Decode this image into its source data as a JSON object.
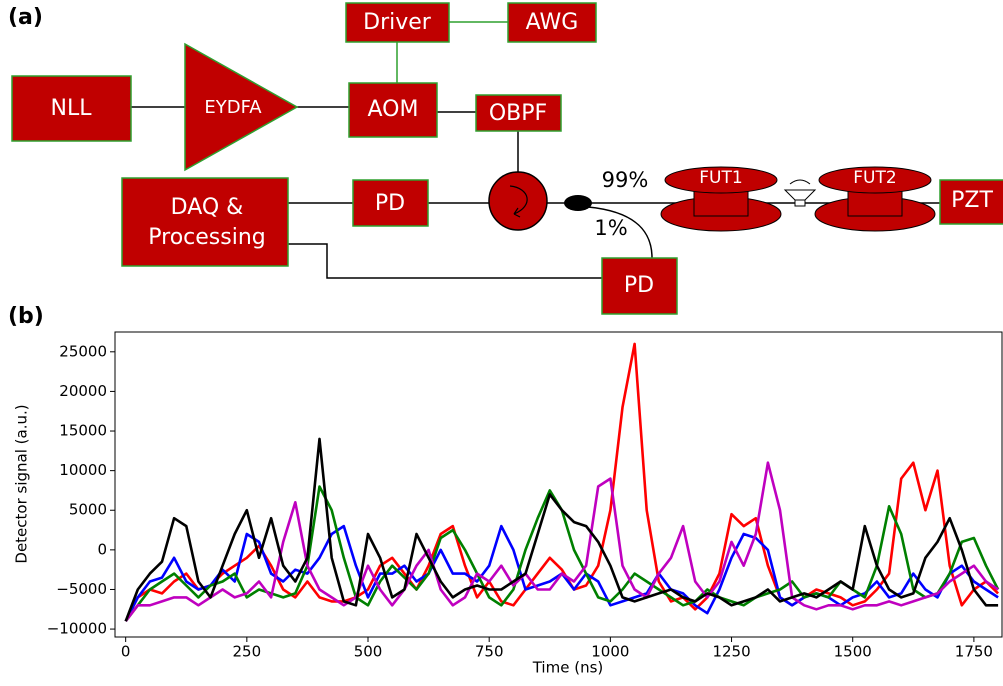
{
  "diagram": {
    "label": "(a)",
    "driver": "Driver",
    "awg": "AWG",
    "nll": "NLL",
    "amplifier": "EYDFA",
    "aom": "AOM",
    "filter": "OBPF",
    "daq": [
      "DAQ &",
      "Processing"
    ],
    "pd_upper": "PD",
    "pd_lower": "PD",
    "split_main": "99%",
    "split_tap": "1%",
    "fut1": "FUT1",
    "fut2": "FUT2",
    "pzt": "PZT"
  },
  "chart_data": {
    "type": "line",
    "label": "(b)",
    "x_label": "Time (ns)",
    "y_label": "Detector signal (a.u.)",
    "xlim": [
      -22,
      1808
    ],
    "ylim": [
      -11000,
      27500
    ],
    "xticks": [
      0,
      250,
      500,
      750,
      1000,
      1250,
      1500,
      1750
    ],
    "yticks": [
      {
        "value": -10000,
        "label": "−10000"
      },
      {
        "value": -5000,
        "label": "−5000"
      },
      0,
      5000,
      10000,
      15000,
      20000,
      25000
    ],
    "x": [
      0,
      25,
      50,
      75,
      100,
      125,
      150,
      175,
      200,
      225,
      250,
      275,
      300,
      325,
      350,
      375,
      400,
      425,
      450,
      475,
      500,
      525,
      550,
      575,
      600,
      625,
      650,
      675,
      700,
      725,
      750,
      775,
      800,
      825,
      850,
      875,
      900,
      925,
      950,
      975,
      1000,
      1025,
      1050,
      1075,
      1100,
      1125,
      1150,
      1175,
      1200,
      1225,
      1250,
      1275,
      1300,
      1325,
      1350,
      1375,
      1400,
      1425,
      1450,
      1475,
      1500,
      1525,
      1550,
      1575,
      1600,
      1625,
      1650,
      1675,
      1700,
      1725,
      1750,
      1775,
      1800
    ],
    "series": [
      {
        "color": "#ff0000",
        "values": [
          -9000,
          -6000,
          -5000,
          -5500,
          -4000,
          -3000,
          -5000,
          -4500,
          -3000,
          -2000,
          -1000,
          500,
          -2000,
          -5000,
          -6000,
          -4000,
          -6000,
          -6500,
          -6500,
          -6000,
          -5000,
          -2000,
          -1000,
          -3000,
          -5000,
          -2000,
          2000,
          3000,
          -2000,
          -6000,
          -4000,
          -6500,
          -7000,
          -5000,
          -3000,
          -1000,
          -2500,
          -5000,
          -4500,
          -2000,
          5000,
          18000,
          26000,
          5000,
          -4000,
          -6500,
          -6000,
          -7500,
          -6000,
          -3000,
          4500,
          3000,
          4000,
          -2000,
          -6000,
          -7000,
          -6000,
          -5000,
          -5500,
          -6000,
          -7000,
          -6500,
          -5000,
          -3000,
          9000,
          11000,
          5000,
          10000,
          -2000,
          -7000,
          -5000,
          -4000,
          -5500
        ]
      },
      {
        "color": "#0000ff",
        "values": [
          -9000,
          -6000,
          -4000,
          -3500,
          -1000,
          -4000,
          -5000,
          -4500,
          -2500,
          -4000,
          2000,
          1000,
          -3000,
          -4000,
          -2500,
          -3000,
          -1000,
          2000,
          3000,
          -2000,
          -6000,
          -3000,
          -3000,
          -2000,
          -4000,
          -3000,
          0,
          -3000,
          -3000,
          -4000,
          -2000,
          3000,
          0,
          -5000,
          -4500,
          -4000,
          -3000,
          -5000,
          -3000,
          -4000,
          -7000,
          -6500,
          -6000,
          -5500,
          -3000,
          -5000,
          -5500,
          -7000,
          -8000,
          -5000,
          -1000,
          2000,
          1500,
          0,
          -6000,
          -7000,
          -6000,
          -5500,
          -6000,
          -7000,
          -6000,
          -5500,
          -4000,
          -6000,
          -5500,
          -3000,
          -5000,
          -6000,
          -3000,
          -2000,
          -4000,
          -5000,
          -6000
        ]
      },
      {
        "color": "#008000",
        "values": [
          -9000,
          -7000,
          -5000,
          -4000,
          -3000,
          -4500,
          -6000,
          -4500,
          -4000,
          -3000,
          -6000,
          -5000,
          -5500,
          -6000,
          -5500,
          -2000,
          8000,
          5000,
          -1000,
          -6000,
          -7000,
          -4000,
          -2000,
          -3500,
          -5000,
          -3000,
          1500,
          2500,
          0,
          -3000,
          -6000,
          -7000,
          -5000,
          0,
          4000,
          7500,
          5000,
          0,
          -3000,
          -6000,
          -6500,
          -5000,
          -3000,
          -4000,
          -5000,
          -6000,
          -7000,
          -6500,
          -5000,
          -6000,
          -6500,
          -7000,
          -6000,
          -5500,
          -5000,
          -4000,
          -6000,
          -5500,
          -6000,
          -4000,
          -5000,
          -6000,
          -2000,
          5500,
          2000,
          -5000,
          -6000,
          -5500,
          -3000,
          1000,
          1500,
          -2000,
          -5000
        ]
      },
      {
        "color": "#bf00bf",
        "values": [
          -9000,
          -7000,
          -7000,
          -6500,
          -6000,
          -6000,
          -7000,
          -6000,
          -5000,
          -6000,
          -5500,
          -4000,
          -6000,
          1000,
          6000,
          -2000,
          -5000,
          -6000,
          -7000,
          -6000,
          -2000,
          -5000,
          -7000,
          -5000,
          -2000,
          0,
          -5000,
          -7000,
          -6000,
          -3000,
          -4000,
          -2000,
          -4500,
          -3000,
          -5000,
          -5000,
          -3000,
          -4000,
          -2000,
          8000,
          9000,
          -2000,
          -5000,
          -6000,
          -3000,
          -1000,
          3000,
          -4000,
          -6000,
          -4000,
          1000,
          -2000,
          2000,
          11000,
          5000,
          -6000,
          -7000,
          -7500,
          -7000,
          -7000,
          -7500,
          -7000,
          -7000,
          -6500,
          -7000,
          -6500,
          -6000,
          -5500,
          -4000,
          -3000,
          -2000,
          -4000,
          -5000
        ]
      },
      {
        "color": "#000000",
        "values": [
          -9000,
          -5000,
          -3000,
          -1500,
          4000,
          3000,
          -4000,
          -6000,
          -2000,
          2000,
          5000,
          -1000,
          4000,
          -2000,
          -4000,
          -1000,
          14000,
          -1000,
          -6500,
          -7000,
          2000,
          -1000,
          -6000,
          -5000,
          2000,
          -1000,
          -4000,
          -6000,
          -5000,
          -4500,
          -5000,
          -5000,
          -4000,
          -3000,
          2000,
          7000,
          5000,
          3500,
          3000,
          1000,
          -2000,
          -6000,
          -6500,
          -6000,
          -5500,
          -5000,
          -6000,
          -6500,
          -5500,
          -6000,
          -7000,
          -6500,
          -6000,
          -5000,
          -6500,
          -6000,
          -5500,
          -6000,
          -5000,
          -4000,
          -5000,
          3000,
          -2000,
          -5000,
          -6000,
          -5500,
          -1000,
          1000,
          4000,
          0,
          -5000,
          -7000,
          -7000
        ]
      }
    ]
  }
}
